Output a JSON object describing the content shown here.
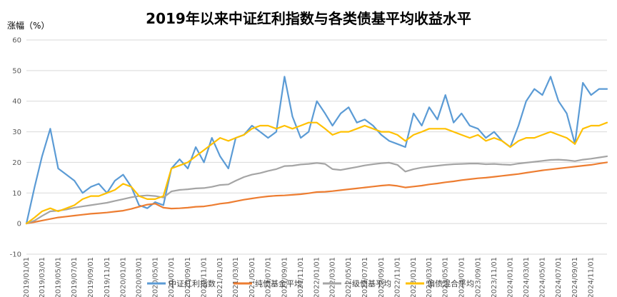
{
  "chart_data": {
    "type": "line",
    "title": "2019年以来中证红利指数与各类债基平均收益水平",
    "ylabel": "涨幅（%）",
    "xlabel": "",
    "ylim": [
      -10,
      60
    ],
    "yticks": [
      -10,
      0,
      10,
      20,
      30,
      40,
      50,
      60
    ],
    "grid": "horizontal",
    "legend_position": "bottom",
    "x_ticks": [
      "2019/01/01",
      "2019/03/01",
      "2019/05/01",
      "2019/07/01",
      "2019/09/01",
      "2019/11/01",
      "2020/01/01",
      "2020/03/01",
      "2020/05/01",
      "2020/07/01",
      "2020/09/01",
      "2020/11/01",
      "2021/01/01",
      "2021/03/01",
      "2021/05/01",
      "2021/07/01",
      "2021/09/01",
      "2021/11/01",
      "2022/01/01",
      "2022/03/01",
      "2022/05/01",
      "2022/07/01",
      "2022/09/01",
      "2022/11/01",
      "2023/01/01",
      "2023/03/01",
      "2023/05/01",
      "2023/07/01",
      "2023/09/01",
      "2023/11/01",
      "2024/01/01",
      "2024/03/01",
      "2024/05/01",
      "2024/07/01",
      "2024/09/01",
      "2024/11/01"
    ],
    "x": [
      "2019/01/01",
      "2019/02/01",
      "2019/03/01",
      "2019/04/01",
      "2019/05/01",
      "2019/06/01",
      "2019/07/01",
      "2019/08/01",
      "2019/09/01",
      "2019/10/01",
      "2019/11/01",
      "2019/12/01",
      "2020/01/01",
      "2020/02/01",
      "2020/03/01",
      "2020/04/01",
      "2020/05/01",
      "2020/06/01",
      "2020/07/01",
      "2020/08/01",
      "2020/09/01",
      "2020/10/01",
      "2020/11/01",
      "2020/12/01",
      "2021/01/01",
      "2021/02/01",
      "2021/03/01",
      "2021/04/01",
      "2021/05/01",
      "2021/06/01",
      "2021/07/01",
      "2021/08/01",
      "2021/09/01",
      "2021/10/01",
      "2021/11/01",
      "2021/12/01",
      "2022/01/01",
      "2022/02/01",
      "2022/03/01",
      "2022/04/01",
      "2022/05/01",
      "2022/06/01",
      "2022/07/01",
      "2022/08/01",
      "2022/09/01",
      "2022/10/01",
      "2022/11/01",
      "2022/12/01",
      "2023/01/01",
      "2023/02/01",
      "2023/03/01",
      "2023/04/01",
      "2023/05/01",
      "2023/06/01",
      "2023/07/01",
      "2023/08/01",
      "2023/09/01",
      "2023/10/01",
      "2023/11/01",
      "2023/12/01",
      "2024/01/01",
      "2024/02/01",
      "2024/03/01",
      "2024/04/01",
      "2024/05/01",
      "2024/06/01",
      "2024/07/01",
      "2024/08/01",
      "2024/09/01",
      "2024/10/01",
      "2024/11/01",
      "2024/12/01",
      "2024/12/31"
    ],
    "series": [
      {
        "name": "中证红利指数",
        "color": "#5B9BD5",
        "values": [
          0,
          12,
          22,
          31,
          18,
          16,
          14,
          10,
          12,
          13,
          10,
          14,
          16,
          12,
          6,
          5,
          7,
          6,
          18,
          21,
          18,
          25,
          20,
          28,
          22,
          18,
          28,
          29,
          32,
          30,
          28,
          30,
          48,
          35,
          28,
          30,
          40,
          36,
          32,
          36,
          38,
          33,
          34,
          32,
          29,
          27,
          26,
          25,
          36,
          32,
          38,
          34,
          42,
          33,
          36,
          32,
          31,
          28,
          30,
          27,
          25,
          32,
          40,
          44,
          42,
          48,
          40,
          36,
          26,
          46,
          42,
          44,
          44
        ]
      },
      {
        "name": "纯债基金平均",
        "color": "#ED7D31",
        "values": [
          0,
          0.5,
          1,
          1.5,
          2,
          2.3,
          2.6,
          2.9,
          3.2,
          3.4,
          3.6,
          3.9,
          4.2,
          4.8,
          5.5,
          6.2,
          6.5,
          5.2,
          4.9,
          5.0,
          5.2,
          5.5,
          5.6,
          6.0,
          6.5,
          6.8,
          7.3,
          7.8,
          8.2,
          8.6,
          8.9,
          9.1,
          9.2,
          9.4,
          9.6,
          9.9,
          10.3,
          10.4,
          10.6,
          10.9,
          11.2,
          11.5,
          11.8,
          12.1,
          12.4,
          12.6,
          12.3,
          11.8,
          12.1,
          12.4,
          12.8,
          13.1,
          13.5,
          13.8,
          14.2,
          14.5,
          14.8,
          15.0,
          15.3,
          15.6,
          15.9,
          16.2,
          16.6,
          17.0,
          17.4,
          17.7,
          18.0,
          18.3,
          18.6,
          18.9,
          19.2,
          19.6,
          20.0
        ]
      },
      {
        "name": "一级债基平均",
        "color": "#A5A5A5",
        "values": [
          0,
          1,
          2.5,
          4,
          4.2,
          4.6,
          5.2,
          5.6,
          6.0,
          6.4,
          6.8,
          7.4,
          8.0,
          8.6,
          9.0,
          9.2,
          9.0,
          8.5,
          10.5,
          11.0,
          11.2,
          11.5,
          11.6,
          12.0,
          12.6,
          12.8,
          14.0,
          15.2,
          16.0,
          16.5,
          17.2,
          17.8,
          18.8,
          18.9,
          19.3,
          19.5,
          19.8,
          19.5,
          17.8,
          17.5,
          18.0,
          18.5,
          19.0,
          19.4,
          19.7,
          19.9,
          19.2,
          17.0,
          17.8,
          18.3,
          18.6,
          18.9,
          19.2,
          19.4,
          19.5,
          19.6,
          19.6,
          19.4,
          19.5,
          19.3,
          19.2,
          19.6,
          19.9,
          20.2,
          20.5,
          20.8,
          20.9,
          20.7,
          20.4,
          20.9,
          21.2,
          21.6,
          22.0
        ]
      },
      {
        "name": "偏债混合平均",
        "color": "#FFC000",
        "values": [
          0,
          2,
          4,
          5,
          4,
          5,
          6,
          8,
          9,
          9,
          10,
          11,
          13,
          12,
          9,
          8,
          8,
          9,
          18,
          19,
          20,
          22,
          24,
          26,
          28,
          27,
          28,
          29,
          31,
          32,
          32,
          31,
          32,
          31,
          32,
          33,
          33,
          31,
          29,
          30,
          30,
          31,
          32,
          31,
          30,
          30,
          29,
          27,
          29,
          30,
          31,
          31,
          31,
          30,
          29,
          28,
          29,
          27,
          28,
          27,
          25,
          27,
          28,
          28,
          29,
          30,
          29,
          28,
          26,
          31,
          32,
          32,
          33
        ]
      }
    ]
  }
}
